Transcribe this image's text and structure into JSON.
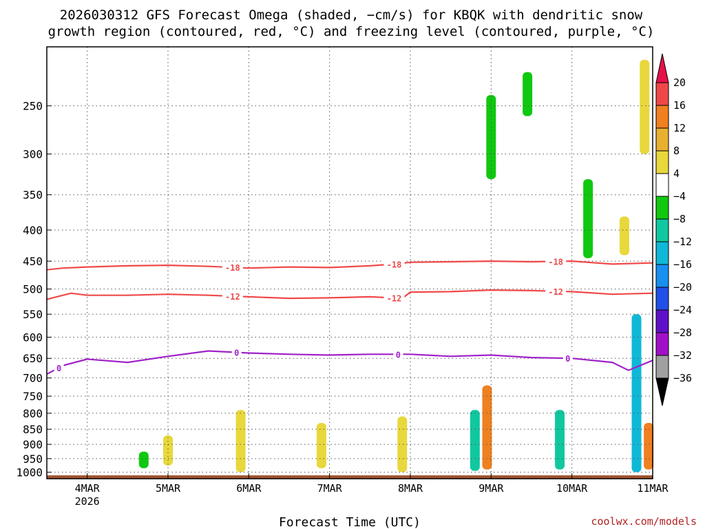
{
  "title_line1": "2026030312 GFS Forecast Omega (shaded, −cm/s) for KBQK with dendritic snow",
  "title_line2": "growth region (contoured, red, °C) and freezing level (contoured, purple, °C)",
  "x_axis_label": "Forecast Time (UTC)",
  "credit": "coolwx.com/models",
  "colors": {
    "ground": "#a0522d",
    "dgz": "#f04848",
    "freezing": "#a020c8",
    "grid": "#555555"
  },
  "chart_data": {
    "type": "heatmap",
    "title": "2026030312 GFS Forecast Omega (shaded, −cm/s) for KBQK with dendritic snow growth region (contoured, red, °C) and freezing level (contoured, purple, °C)",
    "xlabel": "Forecast Time (UTC)",
    "ylabel": "",
    "x_ticks": [
      {
        "day": 4,
        "label": "4MAR",
        "sublabel": "2026"
      },
      {
        "day": 5,
        "label": "5MAR",
        "sublabel": ""
      },
      {
        "day": 6,
        "label": "6MAR",
        "sublabel": ""
      },
      {
        "day": 7,
        "label": "7MAR",
        "sublabel": ""
      },
      {
        "day": 8,
        "label": "8MAR",
        "sublabel": ""
      },
      {
        "day": 9,
        "label": "9MAR",
        "sublabel": ""
      },
      {
        "day": 10,
        "label": "10MAR",
        "sublabel": ""
      },
      {
        "day": 11,
        "label": "11MAR",
        "sublabel": ""
      }
    ],
    "xlim_days": [
      3.5,
      11.0
    ],
    "y_ticks": [
      250,
      300,
      350,
      400,
      450,
      500,
      550,
      600,
      650,
      700,
      750,
      800,
      850,
      900,
      950,
      1000
    ],
    "ylim_hpa": [
      1025,
      200
    ],
    "y_scale": "log",
    "grid": true,
    "colorbar": {
      "levels": [
        "20",
        "16",
        "12",
        "8",
        "4",
        "−4",
        "−8",
        "−12",
        "−16",
        "−20",
        "−24",
        "−28",
        "−32",
        "−36"
      ],
      "colors": [
        "#e8104a",
        "#f04848",
        "#f08020",
        "#e8b030",
        "#e8d83c",
        "#ffffff",
        "#10c810",
        "#10c8a0",
        "#10b8d8",
        "#1890f0",
        "#2050e8",
        "#6010c8",
        "#a010c8",
        "#a0a0a0",
        "#000000"
      ]
    },
    "contours": [
      {
        "label": "-18",
        "color": "#f04848",
        "points": [
          [
            3.5,
            465
          ],
          [
            3.7,
            462
          ],
          [
            4.0,
            460
          ],
          [
            4.5,
            458
          ],
          [
            5.0,
            457
          ],
          [
            5.5,
            459
          ],
          [
            6.0,
            462
          ],
          [
            6.5,
            460
          ],
          [
            7.0,
            461
          ],
          [
            7.5,
            458
          ],
          [
            7.8,
            455
          ],
          [
            8.0,
            452
          ],
          [
            8.5,
            451
          ],
          [
            9.0,
            450
          ],
          [
            9.5,
            451
          ],
          [
            10.0,
            450
          ],
          [
            10.5,
            455
          ],
          [
            11.0,
            453
          ]
        ],
        "label_days": [
          5.8,
          7.8,
          9.8
        ]
      },
      {
        "label": "-12",
        "color": "#f04848",
        "points": [
          [
            3.5,
            520
          ],
          [
            3.8,
            508
          ],
          [
            4.0,
            512
          ],
          [
            4.5,
            512
          ],
          [
            5.0,
            510
          ],
          [
            5.5,
            512
          ],
          [
            6.0,
            515
          ],
          [
            6.5,
            518
          ],
          [
            7.0,
            517
          ],
          [
            7.5,
            515
          ],
          [
            7.9,
            518
          ],
          [
            8.0,
            506
          ],
          [
            8.5,
            505
          ],
          [
            9.0,
            502
          ],
          [
            9.5,
            503
          ],
          [
            10.0,
            505
          ],
          [
            10.5,
            510
          ],
          [
            11.0,
            508
          ]
        ],
        "label_days": [
          5.8,
          7.8,
          9.8
        ]
      },
      {
        "label": "0",
        "color": "#a020c8",
        "points": [
          [
            3.5,
            690
          ],
          [
            3.7,
            668
          ],
          [
            4.0,
            652
          ],
          [
            4.5,
            660
          ],
          [
            5.0,
            645
          ],
          [
            5.5,
            632
          ],
          [
            6.0,
            637
          ],
          [
            6.5,
            640
          ],
          [
            7.0,
            642
          ],
          [
            7.5,
            640
          ],
          [
            8.0,
            640
          ],
          [
            8.5,
            645
          ],
          [
            9.0,
            642
          ],
          [
            9.5,
            648
          ],
          [
            10.0,
            650
          ],
          [
            10.5,
            660
          ],
          [
            10.7,
            680
          ],
          [
            11.0,
            655
          ]
        ],
        "label_days": [
          3.65,
          5.85,
          7.85,
          9.95
        ]
      }
    ],
    "omega_cells": [
      {
        "day": 4.7,
        "p_top": 925,
        "p_bot": 985,
        "value": -6
      },
      {
        "day": 5.0,
        "p_top": 870,
        "p_bot": 975,
        "value": 5
      },
      {
        "day": 5.9,
        "p_top": 790,
        "p_bot": 1000,
        "value": 6
      },
      {
        "day": 6.9,
        "p_top": 830,
        "p_bot": 985,
        "value": 6
      },
      {
        "day": 7.9,
        "p_top": 810,
        "p_bot": 1000,
        "value": 7
      },
      {
        "day": 8.8,
        "p_top": 790,
        "p_bot": 995,
        "value": -10
      },
      {
        "day": 8.95,
        "p_top": 720,
        "p_bot": 990,
        "value": 12
      },
      {
        "day": 9.0,
        "p_top": 240,
        "p_bot": 330,
        "value": -6
      },
      {
        "day": 9.45,
        "p_top": 220,
        "p_bot": 260,
        "value": -6
      },
      {
        "day": 9.85,
        "p_top": 790,
        "p_bot": 990,
        "value": -10
      },
      {
        "day": 10.2,
        "p_top": 330,
        "p_bot": 445,
        "value": -6
      },
      {
        "day": 10.65,
        "p_top": 380,
        "p_bot": 440,
        "value": 5
      },
      {
        "day": 10.8,
        "p_top": 550,
        "p_bot": 1000,
        "value": -14
      },
      {
        "day": 10.9,
        "p_top": 210,
        "p_bot": 300,
        "value": 7
      },
      {
        "day": 10.95,
        "p_top": 830,
        "p_bot": 990,
        "value": 12
      }
    ]
  }
}
